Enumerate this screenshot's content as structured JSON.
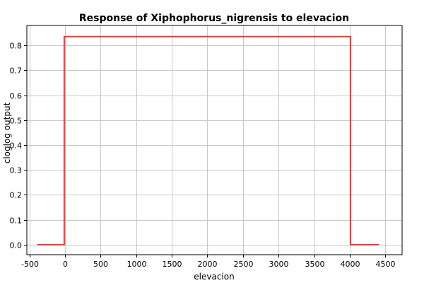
{
  "chart_data": {
    "type": "line",
    "title": "Response of Xiphophorus_nigrensis to elevacion",
    "xlabel": "elevacion",
    "ylabel": "cloglog output",
    "xlim": [
      -535,
      4735
    ],
    "ylim": [
      -0.04,
      0.88
    ],
    "xticks": [
      -500,
      0,
      500,
      1000,
      1500,
      2000,
      2500,
      3000,
      3500,
      4000,
      4500
    ],
    "yticks": [
      0.0,
      0.1,
      0.2,
      0.3,
      0.4,
      0.5,
      0.6,
      0.7,
      0.8
    ],
    "xtick_labels": [
      "-500",
      "0",
      "500",
      "1000",
      "1500",
      "2000",
      "2500",
      "3000",
      "3500",
      "4000",
      "4500"
    ],
    "ytick_labels": [
      "0.0",
      "0.1",
      "0.2",
      "0.3",
      "0.4",
      "0.5",
      "0.6",
      "0.7",
      "0.8"
    ],
    "grid": true,
    "series": [
      {
        "color": "#e8393b",
        "x": [
          -390,
          -10,
          -10,
          4010,
          4010,
          4410
        ],
        "y": [
          0.0,
          0.0,
          0.835,
          0.835,
          0.0,
          0.0
        ]
      }
    ]
  }
}
